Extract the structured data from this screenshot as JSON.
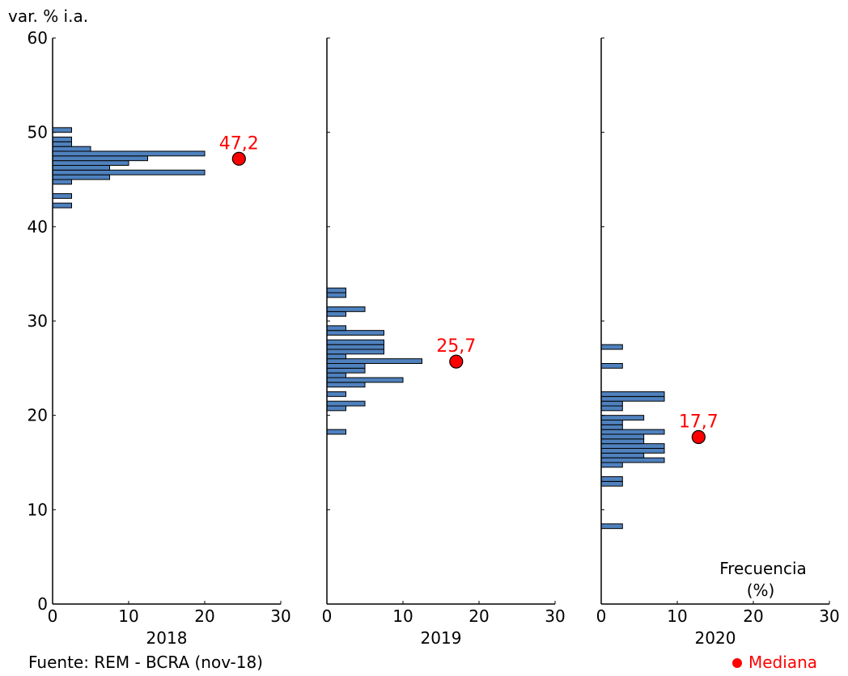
{
  "chart_data": {
    "type": "bar",
    "orientation": "horizontal",
    "ylabel": "var. % i.a.",
    "ylim": [
      0,
      60
    ],
    "yticks": [
      "0",
      "10",
      "20",
      "30",
      "40",
      "50",
      "60"
    ],
    "xlim": [
      0,
      30
    ],
    "xticks": [
      "0",
      "10",
      "20",
      "30"
    ],
    "x_axis_title": "Frecuencia",
    "x_axis_unit": "(%)",
    "source": "Fuente: REM - BCRA (nov-18)",
    "legend": "Mediana",
    "bar_color": "#4f81bd",
    "median_color": "#ff0000",
    "bin_width": 0.5,
    "panels": [
      {
        "label": "2018",
        "median": 47.2,
        "median_label": "47,2",
        "bins": [
          {
            "y": 42.0,
            "freq": 2.5
          },
          {
            "y": 43.0,
            "freq": 2.5
          },
          {
            "y": 44.5,
            "freq": 2.5
          },
          {
            "y": 45.0,
            "freq": 7.5
          },
          {
            "y": 45.5,
            "freq": 20.0
          },
          {
            "y": 46.0,
            "freq": 7.5
          },
          {
            "y": 46.5,
            "freq": 10.0
          },
          {
            "y": 47.0,
            "freq": 12.5
          },
          {
            "y": 47.5,
            "freq": 20.0
          },
          {
            "y": 48.0,
            "freq": 5.0
          },
          {
            "y": 48.5,
            "freq": 2.5
          },
          {
            "y": 49.0,
            "freq": 2.5
          },
          {
            "y": 50.0,
            "freq": 2.5
          }
        ]
      },
      {
        "label": "2019",
        "median": 25.7,
        "median_label": "25,7",
        "bins": [
          {
            "y": 18.0,
            "freq": 2.5
          },
          {
            "y": 20.5,
            "freq": 2.5
          },
          {
            "y": 21.0,
            "freq": 5.0
          },
          {
            "y": 22.0,
            "freq": 2.5
          },
          {
            "y": 23.0,
            "freq": 5.0
          },
          {
            "y": 23.5,
            "freq": 10.0
          },
          {
            "y": 24.0,
            "freq": 2.5
          },
          {
            "y": 24.5,
            "freq": 5.0
          },
          {
            "y": 25.0,
            "freq": 5.0
          },
          {
            "y": 25.5,
            "freq": 12.5
          },
          {
            "y": 26.0,
            "freq": 2.5
          },
          {
            "y": 26.5,
            "freq": 7.5
          },
          {
            "y": 27.0,
            "freq": 7.5
          },
          {
            "y": 27.5,
            "freq": 7.5
          },
          {
            "y": 28.5,
            "freq": 7.5
          },
          {
            "y": 29.0,
            "freq": 2.5
          },
          {
            "y": 30.5,
            "freq": 2.5
          },
          {
            "y": 31.0,
            "freq": 5.0
          },
          {
            "y": 32.5,
            "freq": 2.5
          },
          {
            "y": 33.0,
            "freq": 2.5
          }
        ]
      },
      {
        "label": "2020",
        "median": 17.7,
        "median_label": "17,7",
        "bins": [
          {
            "y": 8.0,
            "freq": 2.8
          },
          {
            "y": 12.5,
            "freq": 2.8
          },
          {
            "y": 13.0,
            "freq": 2.8
          },
          {
            "y": 14.5,
            "freq": 2.8
          },
          {
            "y": 15.0,
            "freq": 8.3
          },
          {
            "y": 15.5,
            "freq": 5.6
          },
          {
            "y": 16.0,
            "freq": 8.3
          },
          {
            "y": 16.5,
            "freq": 8.3
          },
          {
            "y": 17.0,
            "freq": 5.6
          },
          {
            "y": 17.5,
            "freq": 5.6
          },
          {
            "y": 18.0,
            "freq": 8.3
          },
          {
            "y": 18.5,
            "freq": 2.8
          },
          {
            "y": 19.0,
            "freq": 2.8
          },
          {
            "y": 19.5,
            "freq": 5.6
          },
          {
            "y": 20.5,
            "freq": 2.8
          },
          {
            "y": 21.0,
            "freq": 2.8
          },
          {
            "y": 21.5,
            "freq": 8.3
          },
          {
            "y": 22.0,
            "freq": 8.3
          },
          {
            "y": 25.0,
            "freq": 2.8
          },
          {
            "y": 27.0,
            "freq": 2.8
          }
        ]
      }
    ]
  }
}
